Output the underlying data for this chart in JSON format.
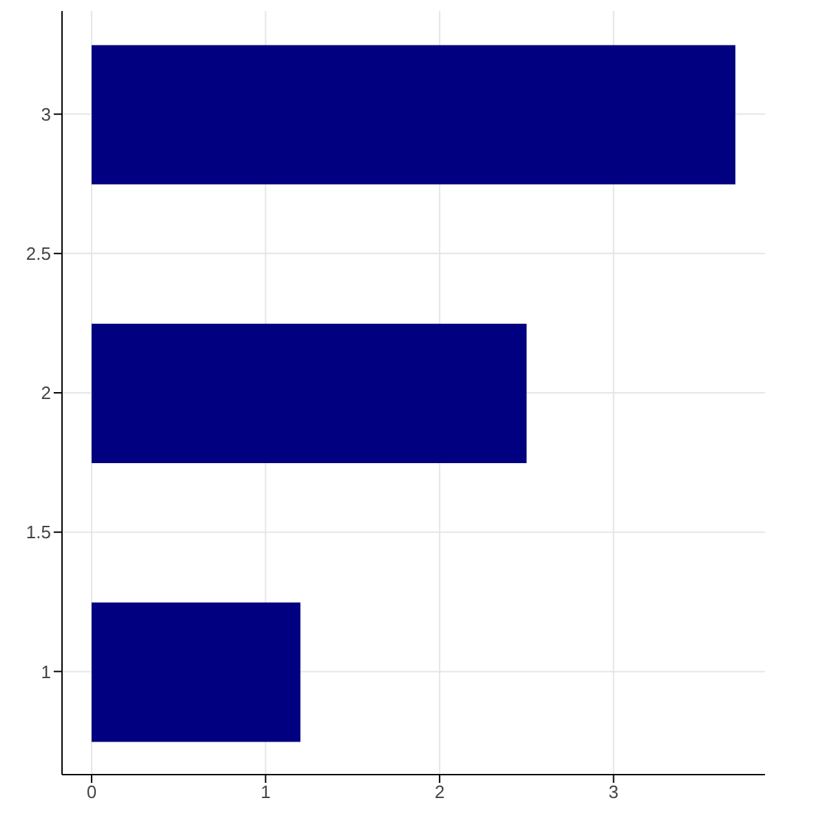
{
  "chart_data": {
    "type": "bar",
    "orientation": "horizontal",
    "x": [
      1,
      2,
      3
    ],
    "values": [
      1.2,
      2.5,
      3.7
    ],
    "color": "#000080",
    "xlim": [
      -0.17,
      3.87
    ],
    "xticks": [
      0,
      1,
      2,
      3
    ],
    "ylim": [
      0.63,
      3.37
    ],
    "yticks": [
      1,
      1.5,
      2,
      2.5,
      3
    ],
    "grid": true
  }
}
